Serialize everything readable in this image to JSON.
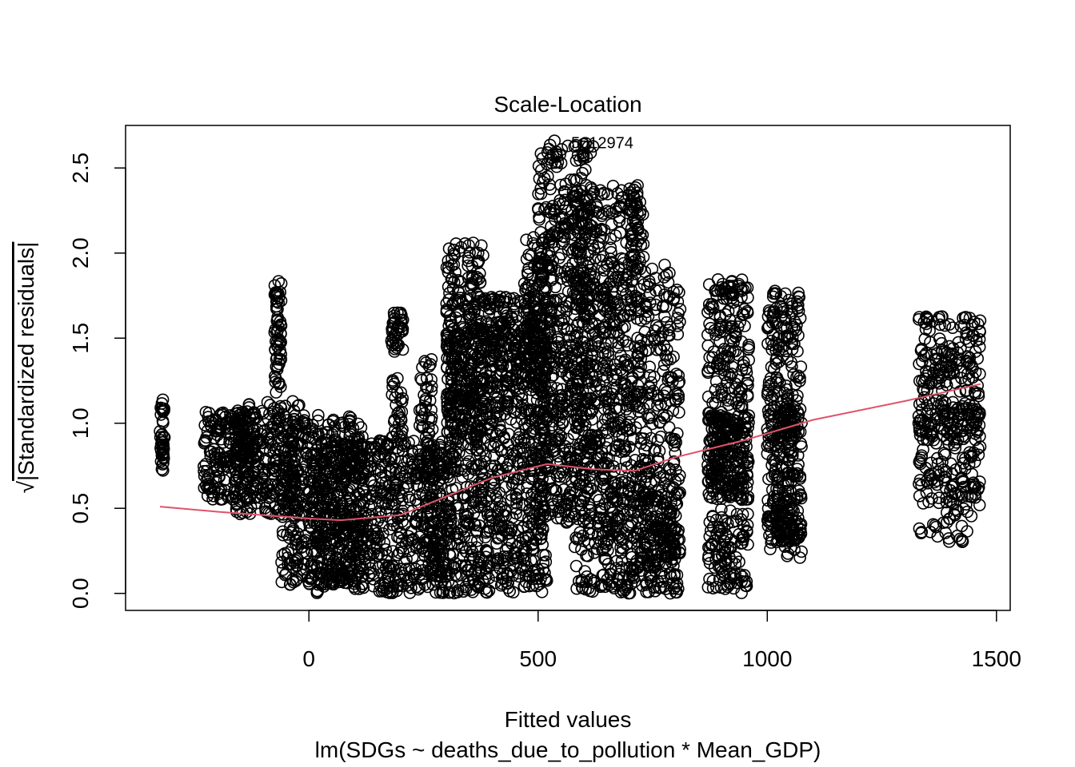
{
  "chart_data": {
    "type": "scatter",
    "title": "Scale-Location",
    "xlabel": "Fitted values",
    "subtitle": "lm(SDGs ~ deaths_due_to_pollution * Mean_GDP)",
    "ylabel_radical": "√",
    "ylabel_text": "|Standardized residuals|",
    "xlim": [
      -400,
      1530
    ],
    "ylim": [
      -0.1,
      2.75
    ],
    "x_ticks": [
      0,
      500,
      1000,
      1500
    ],
    "x_tick_labels": [
      "0",
      "500",
      "1000",
      "1500"
    ],
    "y_ticks": [
      0.0,
      0.5,
      1.0,
      1.5,
      2.0,
      2.5
    ],
    "y_tick_labels": [
      "0.0",
      "0.5",
      "1.0",
      "1.5",
      "2.0",
      "2.5"
    ],
    "grid": false,
    "point_color": "#000000",
    "smooth_color": "#DF536B",
    "annotation": {
      "text": "5012974",
      "x": 565,
      "y": 2.65
    },
    "point_clusters": [
      {
        "x": [
          -325,
          -315
        ],
        "y": [
          0.72,
          1.14
        ],
        "n": 40
      },
      {
        "x": [
          -230,
          -110
        ],
        "y": [
          0.55,
          1.07
        ],
        "n": 220
      },
      {
        "x": [
          -160,
          -20
        ],
        "y": [
          0.45,
          1.13
        ],
        "n": 240
      },
      {
        "x": [
          -75,
          -60
        ],
        "y": [
          1.18,
          1.86
        ],
        "n": 60
      },
      {
        "x": [
          -60,
          120
        ],
        "y": [
          0.05,
          1.05
        ],
        "n": 450
      },
      {
        "x": [
          0,
          300
        ],
        "y": [
          0.0,
          0.9
        ],
        "n": 700
      },
      {
        "x": [
          180,
          205
        ],
        "y": [
          1.42,
          1.65
        ],
        "n": 40
      },
      {
        "x": [
          180,
          205
        ],
        "y": [
          0.9,
          1.28
        ],
        "n": 30
      },
      {
        "x": [
          240,
          270
        ],
        "y": [
          0.5,
          1.38
        ],
        "n": 60
      },
      {
        "x": [
          260,
          290
        ],
        "y": [
          0.1,
          0.8
        ],
        "n": 50
      },
      {
        "x": [
          300,
          380
        ],
        "y": [
          0.9,
          2.06
        ],
        "n": 250
      },
      {
        "x": [
          300,
          520
        ],
        "y": [
          0.0,
          1.6
        ],
        "n": 900
      },
      {
        "x": [
          380,
          520
        ],
        "y": [
          1.2,
          1.75
        ],
        "n": 150
      },
      {
        "x": [
          470,
          530
        ],
        "y": [
          1.4,
          2.1
        ],
        "n": 100
      },
      {
        "x": [
          500,
          620
        ],
        "y": [
          0.4,
          2.66
        ],
        "n": 600
      },
      {
        "x": [
          580,
          720
        ],
        "y": [
          0.0,
          2.4
        ],
        "n": 500
      },
      {
        "x": [
          640,
          810
        ],
        "y": [
          0.0,
          1.95
        ],
        "n": 450
      },
      {
        "x": [
          700,
          730
        ],
        "y": [
          1.9,
          2.38
        ],
        "n": 40
      },
      {
        "x": [
          720,
          810
        ],
        "y": [
          0.0,
          0.8
        ],
        "n": 150
      },
      {
        "x": [
          770,
          800
        ],
        "y": [
          0.2,
          0.55
        ],
        "n": 30
      },
      {
        "x": [
          870,
          960
        ],
        "y": [
          1.0,
          1.85
        ],
        "n": 180
      },
      {
        "x": [
          870,
          960
        ],
        "y": [
          0.55,
          1.05
        ],
        "n": 250
      },
      {
        "x": [
          870,
          960
        ],
        "y": [
          0.0,
          0.5
        ],
        "n": 110
      },
      {
        "x": [
          1000,
          1075
        ],
        "y": [
          0.9,
          1.8
        ],
        "n": 160
      },
      {
        "x": [
          1000,
          1075
        ],
        "y": [
          0.3,
          1.1
        ],
        "n": 200
      },
      {
        "x": [
          1000,
          1075
        ],
        "y": [
          0.2,
          0.6
        ],
        "n": 60
      },
      {
        "x": [
          1330,
          1465
        ],
        "y": [
          0.9,
          1.63
        ],
        "n": 220
      },
      {
        "x": [
          1330,
          1465
        ],
        "y": [
          0.55,
          1.1
        ],
        "n": 120
      },
      {
        "x": [
          1330,
          1465
        ],
        "y": [
          0.3,
          0.7
        ],
        "n": 60
      }
    ],
    "smooth_line": {
      "x": [
        -325,
        -200,
        -100,
        0,
        70,
        200,
        300,
        400,
        520,
        620,
        710,
        800,
        950,
        1100,
        1300,
        1465
      ],
      "y": [
        0.51,
        0.48,
        0.46,
        0.44,
        0.43,
        0.46,
        0.57,
        0.68,
        0.76,
        0.73,
        0.72,
        0.8,
        0.9,
        1.02,
        1.13,
        1.23
      ]
    }
  }
}
